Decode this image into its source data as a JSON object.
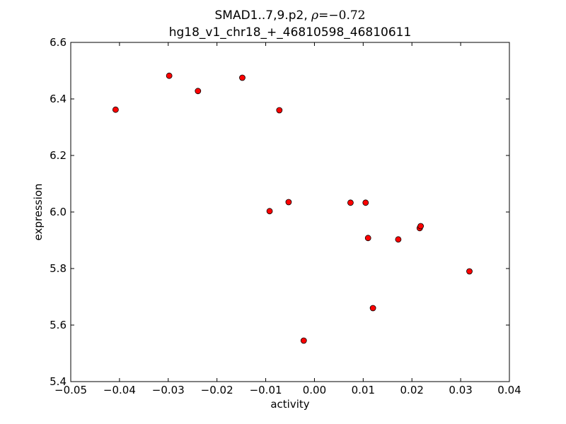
{
  "chart_data": {
    "type": "scatter",
    "title": {
      "line1_prefix": "SMAD1..7,9.p2, ",
      "rho_symbol": "ρ",
      "rho_value": "=−0.72",
      "line2": "hg18_v1_chr18_+_46810598_46810611"
    },
    "xlabel": "activity",
    "ylabel": "expression",
    "xlim": [
      -0.05,
      0.04
    ],
    "ylim": [
      5.4,
      6.6
    ],
    "xticks": [
      -0.05,
      -0.04,
      -0.03,
      -0.02,
      -0.01,
      0.0,
      0.01,
      0.02,
      0.03,
      0.04
    ],
    "xtick_labels": [
      "−0.05",
      "−0.04",
      "−0.03",
      "−0.02",
      "−0.01",
      "0.00",
      "0.01",
      "0.02",
      "0.03",
      "0.04"
    ],
    "yticks": [
      5.4,
      5.6,
      5.8,
      6.0,
      6.2,
      6.4,
      6.6
    ],
    "ytick_labels": [
      "5.4",
      "5.6",
      "5.8",
      "6.0",
      "6.2",
      "6.4",
      "6.6"
    ],
    "grid": false,
    "marker_color": "#ff0000",
    "marker_edge_color": "#000000",
    "points": [
      {
        "x": -0.0408,
        "y": 6.362
      },
      {
        "x": -0.0298,
        "y": 6.482
      },
      {
        "x": -0.0239,
        "y": 6.428
      },
      {
        "x": -0.0148,
        "y": 6.475
      },
      {
        "x": -0.0072,
        "y": 6.36
      },
      {
        "x": -0.0092,
        "y": 6.003
      },
      {
        "x": -0.0053,
        "y": 6.035
      },
      {
        "x": -0.0022,
        "y": 5.545
      },
      {
        "x": 0.0074,
        "y": 6.033
      },
      {
        "x": 0.0105,
        "y": 6.033
      },
      {
        "x": 0.011,
        "y": 5.908
      },
      {
        "x": 0.012,
        "y": 5.66
      },
      {
        "x": 0.0172,
        "y": 5.903
      },
      {
        "x": 0.0216,
        "y": 5.943
      },
      {
        "x": 0.0218,
        "y": 5.95
      },
      {
        "x": 0.0318,
        "y": 5.79
      }
    ]
  }
}
